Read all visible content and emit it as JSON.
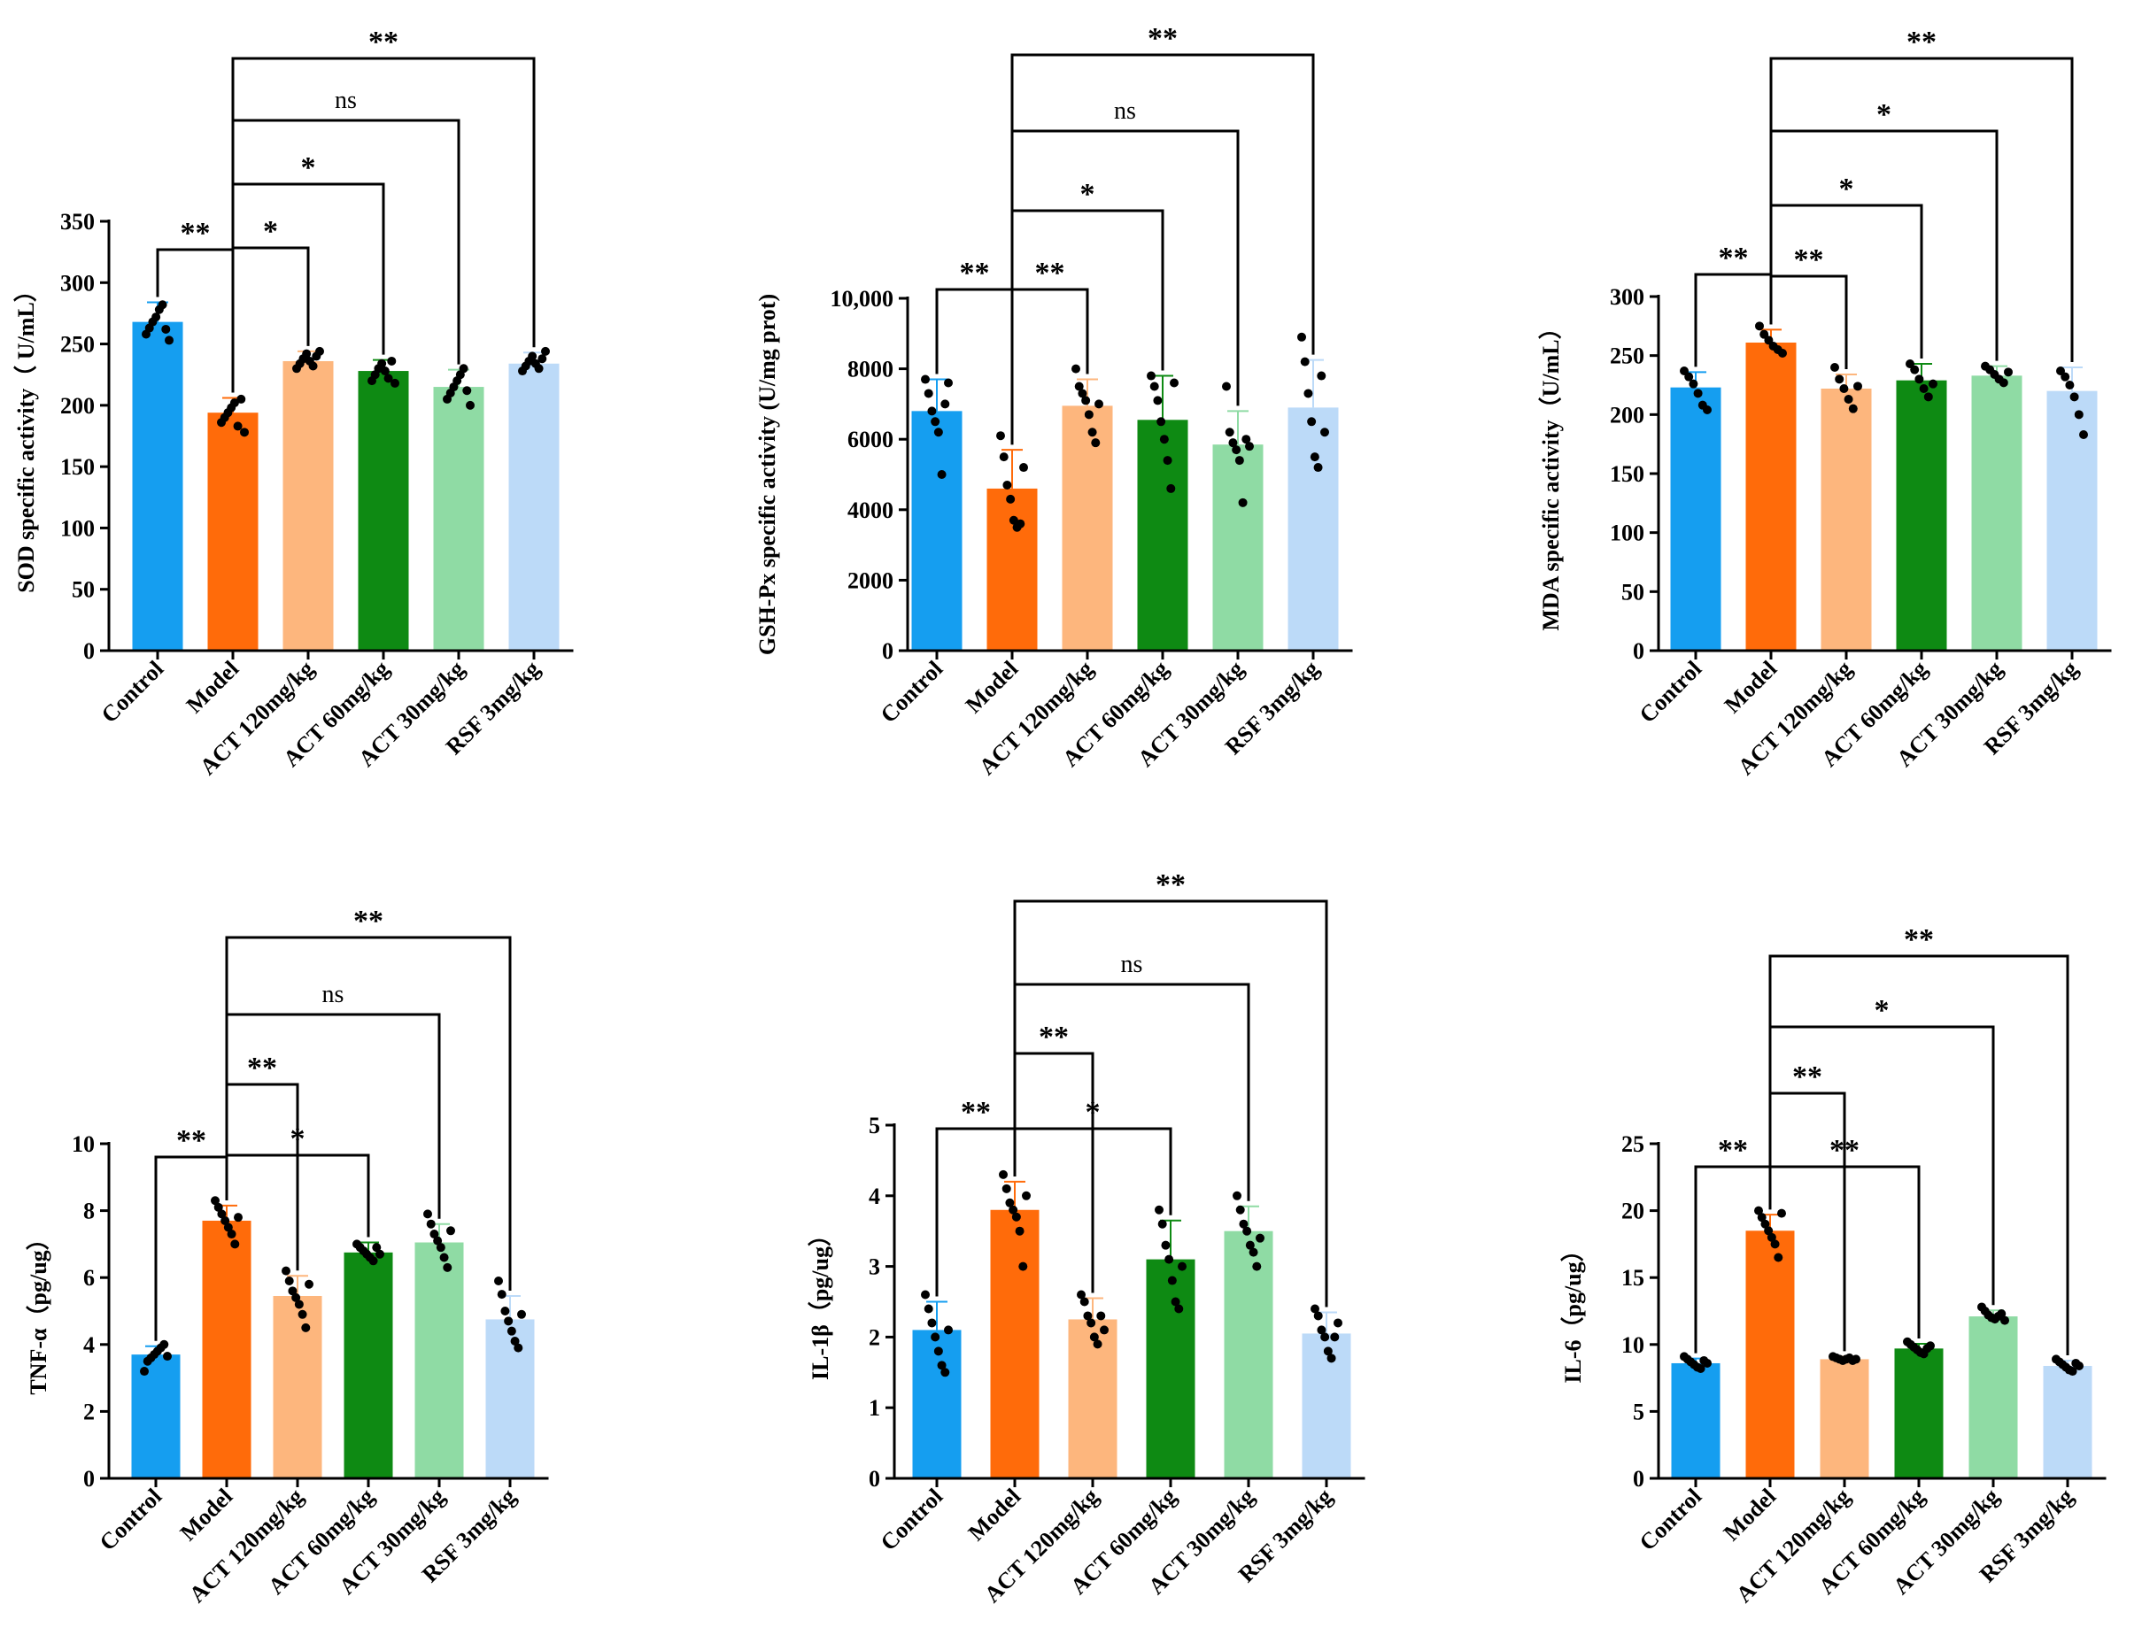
{
  "figure": {
    "colors": [
      "#159ef0",
      "#ff6b0a",
      "#fdb67d",
      "#0e8a13",
      "#8fdba4",
      "#bcdaf8"
    ],
    "point_color": "#000000",
    "line_color": "#000000"
  },
  "chart_data": [
    {
      "type": "bar",
      "ylabel": "SOD specific activity（ U/mL）",
      "categories": [
        "Control",
        "Model",
        "ACT 120mg/kg",
        "ACT 60mg/kg",
        "ACT 30mg/kg",
        "RSF 3mg/kg"
      ],
      "values": [
        268,
        194,
        236,
        228,
        215,
        234
      ],
      "errors": [
        16,
        12,
        8,
        9,
        14,
        9
      ],
      "ylim": [
        0,
        350
      ],
      "yticks": [
        0,
        50,
        100,
        150,
        200,
        250,
        300,
        350
      ],
      "ytick_labels": [
        "0",
        "50",
        "100",
        "150",
        "200",
        "250",
        "300",
        "350"
      ],
      "points": [
        [
          258,
          263,
          268,
          272,
          278,
          282,
          262,
          253
        ],
        [
          186,
          190,
          194,
          198,
          202,
          183,
          205,
          178
        ],
        [
          230,
          234,
          238,
          242,
          236,
          232,
          240,
          244
        ],
        [
          220,
          225,
          230,
          234,
          228,
          222,
          236,
          218
        ],
        [
          205,
          210,
          215,
          220,
          225,
          230,
          212,
          200
        ],
        [
          228,
          232,
          236,
          240,
          234,
          230,
          238,
          244
        ]
      ],
      "comparisons": [
        {
          "a": 0,
          "b": 1,
          "label": "**"
        },
        {
          "a": 1,
          "b": 2,
          "label": "*"
        },
        {
          "a": 1,
          "b": 3,
          "label": "*"
        },
        {
          "a": 1,
          "b": 4,
          "label": "ns"
        },
        {
          "a": 1,
          "b": 5,
          "label": "**"
        }
      ]
    },
    {
      "type": "bar",
      "ylabel": "GSH-Px specific activity (U/mg prot)",
      "categories": [
        "Control",
        "Model",
        "ACT 120mg/kg",
        "ACT 60mg/kg",
        "ACT 30mg/kg",
        "RSF 3mg/kg"
      ],
      "values": [
        6800,
        4600,
        6950,
        6550,
        5850,
        6900
      ],
      "errors": [
        900,
        1100,
        750,
        1250,
        950,
        1350
      ],
      "ylim": [
        0,
        10000
      ],
      "yticks": [
        0,
        2000,
        4000,
        6000,
        8000,
        10000
      ],
      "ytick_labels": [
        "0",
        "2000",
        "4000",
        "6000",
        "8000",
        "10,000"
      ],
      "points": [
        [
          7700,
          7300,
          6800,
          6500,
          6200,
          5000,
          7000,
          7600
        ],
        [
          6100,
          5500,
          4700,
          4300,
          3700,
          3500,
          3600,
          5200
        ],
        [
          8000,
          7500,
          7300,
          7100,
          6700,
          6200,
          5900,
          7000
        ],
        [
          7800,
          7500,
          7100,
          6500,
          6000,
          5400,
          4600,
          7600
        ],
        [
          7500,
          6200,
          5900,
          5700,
          5400,
          4200,
          6000,
          5800
        ],
        [
          8900,
          8200,
          7300,
          6500,
          5500,
          5200,
          7800,
          6200
        ]
      ],
      "comparisons": [
        {
          "a": 0,
          "b": 1,
          "label": "**"
        },
        {
          "a": 1,
          "b": 2,
          "label": "**"
        },
        {
          "a": 1,
          "b": 3,
          "label": "*"
        },
        {
          "a": 1,
          "b": 4,
          "label": "ns"
        },
        {
          "a": 1,
          "b": 5,
          "label": "**"
        }
      ]
    },
    {
      "type": "bar",
      "ylabel": "MDA specific activity（U/mL）",
      "categories": [
        "Control",
        "Model",
        "ACT 120mg/kg",
        "ACT 60mg/kg",
        "ACT 30mg/kg",
        "RSF 3mg/kg"
      ],
      "values": [
        223,
        261,
        222,
        229,
        233,
        220
      ],
      "errors": [
        13,
        11,
        12,
        14,
        8,
        20
      ],
      "ylim": [
        0,
        300
      ],
      "yticks": [
        0,
        50,
        100,
        150,
        200,
        250,
        300
      ],
      "ytick_labels": [
        "0",
        "50",
        "100",
        "150",
        "200",
        "250",
        "300"
      ],
      "points": [
        [
          237,
          232,
          226,
          218,
          208,
          204
        ],
        [
          275,
          268,
          263,
          258,
          255,
          252
        ],
        [
          240,
          230,
          222,
          213,
          205,
          224
        ],
        [
          243,
          238,
          230,
          222,
          215,
          226
        ],
        [
          241,
          238,
          234,
          230,
          227,
          236
        ],
        [
          237,
          232,
          225,
          215,
          200,
          183
        ]
      ],
      "comparisons": [
        {
          "a": 0,
          "b": 1,
          "label": "**"
        },
        {
          "a": 1,
          "b": 2,
          "label": "**"
        },
        {
          "a": 1,
          "b": 3,
          "label": "*"
        },
        {
          "a": 1,
          "b": 4,
          "label": "*"
        },
        {
          "a": 1,
          "b": 5,
          "label": "**"
        }
      ]
    },
    {
      "type": "bar",
      "ylabel": "TNF-α（pg/ug）",
      "categories": [
        "Control",
        "Model",
        "ACT 120mg/kg",
        "ACT 60mg/kg",
        "ACT 30mg/kg",
        "RSF 3mg/kg"
      ],
      "values": [
        3.7,
        7.7,
        5.45,
        6.75,
        7.05,
        4.75
      ],
      "errors": [
        0.25,
        0.45,
        0.6,
        0.3,
        0.55,
        0.7
      ],
      "ylim": [
        0,
        10
      ],
      "yticks": [
        0,
        2,
        4,
        6,
        8,
        10
      ],
      "ytick_labels": [
        "0",
        "2",
        "4",
        "6",
        "8",
        "10"
      ],
      "points": [
        [
          3.2,
          3.5,
          3.6,
          3.7,
          3.8,
          3.9,
          4.0,
          3.65
        ],
        [
          8.3,
          8.1,
          7.9,
          7.7,
          7.5,
          7.3,
          7.0,
          7.8
        ],
        [
          6.2,
          5.9,
          5.6,
          5.4,
          5.2,
          4.9,
          4.5,
          5.8
        ],
        [
          7.0,
          6.9,
          6.8,
          6.7,
          6.6,
          6.5,
          6.9,
          6.7
        ],
        [
          7.9,
          7.6,
          7.3,
          7.1,
          6.9,
          6.6,
          6.3,
          7.4
        ],
        [
          5.9,
          5.5,
          5.0,
          4.7,
          4.4,
          4.1,
          3.9,
          4.9
        ]
      ],
      "comparisons": [
        {
          "a": 0,
          "b": 1,
          "label": "**"
        },
        {
          "a": 1,
          "b": 3,
          "label": "*"
        },
        {
          "a": 1,
          "b": 2,
          "label": "**"
        },
        {
          "a": 1,
          "b": 4,
          "label": "ns"
        },
        {
          "a": 1,
          "b": 5,
          "label": "**"
        }
      ]
    },
    {
      "type": "bar",
      "ylabel": "IL-1β（pg/ug）",
      "categories": [
        "Control",
        "Model",
        "ACT 120mg/kg",
        "ACT 60mg/kg",
        "ACT 30mg/kg",
        "RSF 3mg/kg"
      ],
      "values": [
        2.1,
        3.8,
        2.25,
        3.1,
        3.5,
        2.05
      ],
      "errors": [
        0.4,
        0.4,
        0.3,
        0.55,
        0.35,
        0.3
      ],
      "ylim": [
        0,
        5
      ],
      "yticks": [
        0,
        1,
        2,
        3,
        4,
        5
      ],
      "ytick_labels": [
        "0",
        "1",
        "2",
        "3",
        "4",
        "5"
      ],
      "points": [
        [
          2.6,
          2.4,
          2.2,
          2.0,
          1.8,
          1.6,
          1.5,
          2.1
        ],
        [
          4.3,
          4.1,
          3.9,
          3.8,
          3.7,
          3.5,
          3.0,
          4.0
        ],
        [
          2.6,
          2.5,
          2.3,
          2.2,
          2.0,
          1.9,
          2.3,
          2.1
        ],
        [
          3.8,
          3.6,
          3.3,
          3.1,
          2.8,
          2.5,
          2.4,
          3.0
        ],
        [
          4.0,
          3.8,
          3.6,
          3.5,
          3.3,
          3.2,
          3.0,
          3.4
        ],
        [
          2.4,
          2.3,
          2.1,
          2.0,
          1.8,
          1.7,
          2.0,
          2.2
        ]
      ],
      "comparisons": [
        {
          "a": 0,
          "b": 1,
          "label": "**"
        },
        {
          "a": 1,
          "b": 3,
          "label": "*"
        },
        {
          "a": 1,
          "b": 2,
          "label": "**"
        },
        {
          "a": 1,
          "b": 4,
          "label": "ns"
        },
        {
          "a": 1,
          "b": 5,
          "label": "**"
        }
      ]
    },
    {
      "type": "bar",
      "ylabel": "IL-6（pg/ug）",
      "categories": [
        "Control",
        "Model",
        "ACT 120mg/kg",
        "ACT 60mg/kg",
        "ACT 30mg/kg",
        "RSF 3mg/kg"
      ],
      "values": [
        8.6,
        18.5,
        8.9,
        9.7,
        12.1,
        8.4
      ],
      "errors": [
        0.35,
        1.2,
        0.2,
        0.35,
        0.45,
        0.4
      ],
      "ylim": [
        0,
        25
      ],
      "yticks": [
        0,
        5,
        10,
        15,
        20,
        25
      ],
      "ytick_labels": [
        "0",
        "5",
        "10",
        "15",
        "20",
        "25"
      ],
      "points": [
        [
          9.1,
          8.9,
          8.7,
          8.5,
          8.3,
          8.2,
          8.8,
          8.6
        ],
        [
          20.0,
          19.5,
          19.0,
          18.5,
          18.0,
          17.5,
          16.5,
          19.8
        ],
        [
          9.1,
          9.0,
          8.9,
          8.8,
          8.9,
          9.0,
          8.8,
          8.9
        ],
        [
          10.2,
          10.0,
          9.8,
          9.6,
          9.4,
          9.3,
          9.7,
          9.9
        ],
        [
          12.8,
          12.5,
          12.2,
          12.0,
          11.9,
          12.1,
          12.3,
          11.8
        ],
        [
          8.9,
          8.7,
          8.5,
          8.3,
          8.1,
          8.0,
          8.6,
          8.4
        ]
      ],
      "comparisons": [
        {
          "a": 0,
          "b": 1,
          "label": "**"
        },
        {
          "a": 1,
          "b": 3,
          "label": "**"
        },
        {
          "a": 1,
          "b": 2,
          "label": "**"
        },
        {
          "a": 1,
          "b": 4,
          "label": "*"
        },
        {
          "a": 1,
          "b": 5,
          "label": "**"
        }
      ]
    }
  ]
}
